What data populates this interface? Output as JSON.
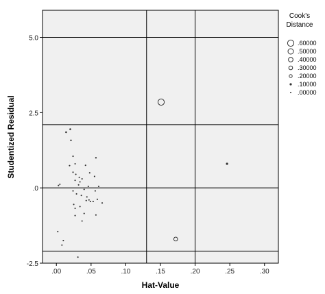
{
  "chart_data": {
    "type": "scatter",
    "xlabel": "Hat-Value",
    "ylabel": "Studentized Residual",
    "xlim": [
      -0.02,
      0.32
    ],
    "ylim": [
      -2.5,
      5.9
    ],
    "xticks": [
      0.0,
      0.05,
      0.1,
      0.15,
      0.2,
      0.25,
      0.3
    ],
    "xtick_labels": [
      ".00",
      ".05",
      ".10",
      ".15",
      ".20",
      ".25",
      ".30"
    ],
    "yticks": [
      -2.5,
      0.0,
      2.5,
      5.0
    ],
    "ytick_labels": [
      "-2.5",
      ".0",
      "2.5",
      "5.0"
    ],
    "reference_lines": {
      "vertical": [
        0.13,
        0.2
      ],
      "horizontal": [
        -2.1,
        0.0,
        2.1,
        5.0
      ]
    },
    "legend": {
      "title_lines": [
        "Cook's",
        "Distance"
      ],
      "position": "right",
      "entries": [
        {
          "label": ".60000",
          "value": 0.6
        },
        {
          "label": ".50000",
          "value": 0.5
        },
        {
          "label": ".40000",
          "value": 0.4
        },
        {
          "label": ".30000",
          "value": 0.3
        },
        {
          "label": ".20000",
          "value": 0.2
        },
        {
          "label": ".10000",
          "value": 0.1
        },
        {
          "label": ".00000",
          "value": 0.0
        }
      ]
    },
    "points": [
      {
        "x": 0.151,
        "y": 2.85,
        "cooks": 0.6
      },
      {
        "x": 0.172,
        "y": -1.7,
        "cooks": 0.3
      },
      {
        "x": 0.246,
        "y": 0.8,
        "cooks": 0.1
      },
      {
        "x": 0.014,
        "y": 1.85,
        "cooks": 0.05
      },
      {
        "x": 0.02,
        "y": 1.95,
        "cooks": 0.05
      },
      {
        "x": 0.021,
        "y": 1.58,
        "cooks": 0.03
      },
      {
        "x": 0.057,
        "y": 1.0,
        "cooks": 0.03
      },
      {
        "x": 0.024,
        "y": 1.05,
        "cooks": 0.02
      },
      {
        "x": 0.003,
        "y": 0.08,
        "cooks": 0.01
      },
      {
        "x": 0.005,
        "y": 0.12,
        "cooks": 0.01
      },
      {
        "x": 0.019,
        "y": 0.74,
        "cooks": 0.01
      },
      {
        "x": 0.027,
        "y": 0.8,
        "cooks": 0.01
      },
      {
        "x": 0.042,
        "y": 0.75,
        "cooks": 0.01
      },
      {
        "x": 0.024,
        "y": 0.52,
        "cooks": 0.01
      },
      {
        "x": 0.028,
        "y": 0.45,
        "cooks": 0.01
      },
      {
        "x": 0.048,
        "y": 0.5,
        "cooks": 0.01
      },
      {
        "x": 0.055,
        "y": 0.38,
        "cooks": 0.01
      },
      {
        "x": 0.033,
        "y": 0.35,
        "cooks": 0.01
      },
      {
        "x": 0.037,
        "y": 0.3,
        "cooks": 0.01
      },
      {
        "x": 0.027,
        "y": 0.25,
        "cooks": 0.01
      },
      {
        "x": 0.034,
        "y": 0.2,
        "cooks": 0.01
      },
      {
        "x": 0.032,
        "y": 0.1,
        "cooks": 0.01
      },
      {
        "x": 0.046,
        "y": 0.05,
        "cooks": 0.01
      },
      {
        "x": 0.061,
        "y": 0.05,
        "cooks": 0.01
      },
      {
        "x": 0.04,
        "y": -0.05,
        "cooks": 0.01
      },
      {
        "x": 0.056,
        "y": -0.1,
        "cooks": 0.01
      },
      {
        "x": 0.024,
        "y": -0.1,
        "cooks": 0.01
      },
      {
        "x": 0.029,
        "y": -0.2,
        "cooks": 0.01
      },
      {
        "x": 0.036,
        "y": -0.25,
        "cooks": 0.01
      },
      {
        "x": 0.044,
        "y": -0.3,
        "cooks": 0.01
      },
      {
        "x": 0.047,
        "y": -0.4,
        "cooks": 0.01
      },
      {
        "x": 0.049,
        "y": -0.45,
        "cooks": 0.01
      },
      {
        "x": 0.043,
        "y": -0.42,
        "cooks": 0.01
      },
      {
        "x": 0.053,
        "y": -0.45,
        "cooks": 0.01
      },
      {
        "x": 0.059,
        "y": -0.38,
        "cooks": 0.01
      },
      {
        "x": 0.066,
        "y": -0.5,
        "cooks": 0.01
      },
      {
        "x": 0.025,
        "y": -0.55,
        "cooks": 0.01
      },
      {
        "x": 0.027,
        "y": -0.68,
        "cooks": 0.01
      },
      {
        "x": 0.034,
        "y": -0.62,
        "cooks": 0.01
      },
      {
        "x": 0.04,
        "y": -0.85,
        "cooks": 0.01
      },
      {
        "x": 0.057,
        "y": -0.9,
        "cooks": 0.01
      },
      {
        "x": 0.027,
        "y": -0.92,
        "cooks": 0.01
      },
      {
        "x": 0.037,
        "y": -1.1,
        "cooks": 0.01
      },
      {
        "x": 0.002,
        "y": -1.45,
        "cooks": 0.01
      },
      {
        "x": 0.01,
        "y": -1.75,
        "cooks": 0.01
      },
      {
        "x": 0.008,
        "y": -1.9,
        "cooks": 0.01
      },
      {
        "x": 0.031,
        "y": -2.3,
        "cooks": 0.01
      }
    ]
  }
}
